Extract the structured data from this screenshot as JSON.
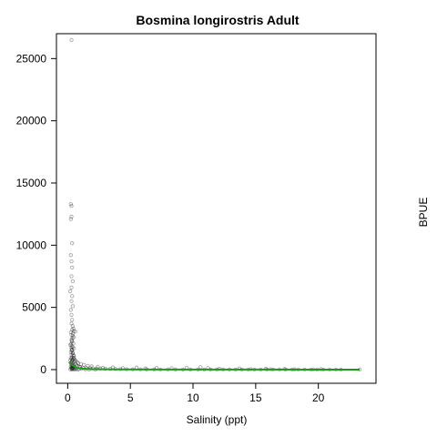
{
  "chart_data": {
    "type": "scatter",
    "title": "Bosmina longirostris Adult",
    "xlabel": "Salinity (ppt)",
    "ylabel": "BPUE",
    "xlim": [
      -0.9,
      24.6
    ],
    "ylim": [
      -1100,
      27000
    ],
    "x_ticks": [
      0,
      5,
      10,
      15,
      20
    ],
    "y_ticks": [
      0,
      5000,
      10000,
      15000,
      20000,
      25000
    ],
    "grid": false,
    "legend": "none",
    "point_color": "#000000",
    "fit_color": "#1a9a1a",
    "series": [
      {
        "kind": "points",
        "points": [
          [
            0.3,
            26500
          ],
          [
            0.25,
            13300
          ],
          [
            0.3,
            13150
          ],
          [
            0.3,
            12300
          ],
          [
            0.25,
            12100
          ],
          [
            0.35,
            10150
          ],
          [
            0.25,
            9200
          ],
          [
            0.3,
            8700
          ],
          [
            0.35,
            8200
          ],
          [
            0.3,
            7500
          ],
          [
            0.4,
            7100
          ],
          [
            0.3,
            6600
          ],
          [
            0.2,
            6300
          ],
          [
            0.35,
            5900
          ],
          [
            0.3,
            5500
          ],
          [
            0.4,
            5100
          ],
          [
            0.25,
            4800
          ],
          [
            0.3,
            4400
          ],
          [
            0.35,
            4000
          ],
          [
            0.3,
            3700
          ],
          [
            0.4,
            3500
          ],
          [
            0.45,
            3300
          ],
          [
            0.5,
            3100
          ],
          [
            0.6,
            3050
          ],
          [
            0.35,
            3200
          ],
          [
            0.25,
            3000
          ],
          [
            0.3,
            2800
          ],
          [
            0.4,
            2700
          ],
          [
            0.5,
            2600
          ],
          [
            0.3,
            2400
          ],
          [
            0.35,
            2250
          ],
          [
            0.45,
            2100
          ],
          [
            0.2,
            2000
          ],
          [
            0.3,
            1900
          ],
          [
            0.4,
            1800
          ],
          [
            0.5,
            1700
          ],
          [
            0.3,
            1600
          ],
          [
            0.35,
            1500
          ],
          [
            0.25,
            1400
          ],
          [
            0.4,
            1300
          ],
          [
            0.3,
            1200
          ],
          [
            0.5,
            1100
          ],
          [
            0.35,
            1000
          ],
          [
            0.25,
            950
          ],
          [
            0.45,
            900
          ],
          [
            0.3,
            850
          ],
          [
            0.4,
            800
          ],
          [
            0.2,
            750
          ],
          [
            0.35,
            700
          ],
          [
            0.55,
            650
          ],
          [
            0.3,
            600
          ],
          [
            0.25,
            550
          ],
          [
            0.4,
            500
          ],
          [
            0.6,
            450
          ],
          [
            0.3,
            420
          ],
          [
            0.35,
            380
          ],
          [
            0.5,
            350
          ],
          [
            0.7,
            320
          ],
          [
            0.3,
            300
          ],
          [
            0.45,
            280
          ],
          [
            0.8,
            260
          ],
          [
            0.25,
            240
          ],
          [
            0.9,
            220
          ],
          [
            1.0,
            200
          ],
          [
            0.35,
            180
          ],
          [
            1.2,
            160
          ],
          [
            0.4,
            150
          ],
          [
            1.5,
            140
          ],
          [
            0.3,
            130
          ],
          [
            0.6,
            120
          ],
          [
            1.8,
            110
          ],
          [
            0.5,
            100
          ],
          [
            2.0,
            100
          ],
          [
            0.3,
            90
          ],
          [
            2.3,
            90
          ],
          [
            0.7,
            80
          ],
          [
            2.6,
            80
          ],
          [
            0.4,
            70
          ],
          [
            3.0,
            70
          ],
          [
            1.1,
            60
          ],
          [
            3.4,
            60
          ],
          [
            0.3,
            50
          ],
          [
            3.8,
            50
          ],
          [
            0.9,
            40
          ],
          [
            4.2,
            40
          ],
          [
            0.5,
            30
          ],
          [
            4.7,
            30
          ],
          [
            1.4,
            25
          ],
          [
            5.2,
            25
          ],
          [
            0.2,
            20
          ],
          [
            5.8,
            20
          ],
          [
            6.3,
            18
          ],
          [
            0.6,
            15
          ],
          [
            6.9,
            15
          ],
          [
            1.7,
            12
          ],
          [
            7.4,
            12
          ],
          [
            0.35,
            10
          ],
          [
            8.0,
            10
          ],
          [
            8.6,
            9
          ],
          [
            0.8,
            8
          ],
          [
            9.2,
            8
          ],
          [
            9.8,
            7
          ],
          [
            2.2,
            6
          ],
          [
            10.4,
            6
          ],
          [
            10.6,
            200
          ],
          [
            10.9,
            6
          ],
          [
            11.4,
            5
          ],
          [
            11.9,
            5
          ],
          [
            12.4,
            4
          ],
          [
            12.9,
            4
          ],
          [
            13.4,
            4
          ],
          [
            13.9,
            3
          ],
          [
            14.4,
            3
          ],
          [
            14.9,
            3
          ],
          [
            15.4,
            3
          ],
          [
            15.9,
            2
          ],
          [
            16.4,
            2
          ],
          [
            16.9,
            2
          ],
          [
            17.4,
            2
          ],
          [
            17.9,
            2
          ],
          [
            18.4,
            1
          ],
          [
            18.9,
            1
          ],
          [
            19.4,
            1
          ],
          [
            19.9,
            1
          ],
          [
            20.4,
            1
          ],
          [
            20.9,
            1
          ],
          [
            21.4,
            1
          ],
          [
            21.8,
            1
          ],
          [
            23.3,
            1
          ],
          [
            12.1,
            60
          ],
          [
            14.6,
            40
          ],
          [
            16.2,
            30
          ],
          [
            18.1,
            25
          ],
          [
            19.6,
            20
          ],
          [
            13.7,
            90
          ],
          [
            11.2,
            120
          ],
          [
            15.8,
            70
          ],
          [
            17.3,
            50
          ],
          [
            20.2,
            35
          ],
          [
            9.5,
            150
          ],
          [
            8.3,
            110
          ],
          [
            7.1,
            130
          ],
          [
            6.2,
            90
          ],
          [
            5.5,
            160
          ],
          [
            4.4,
            120
          ],
          [
            3.6,
            180
          ],
          [
            2.8,
            140
          ],
          [
            2.4,
            220
          ],
          [
            1.9,
            260
          ],
          [
            1.6,
            300
          ],
          [
            1.3,
            380
          ],
          [
            1.05,
            450
          ],
          [
            0.85,
            520
          ],
          [
            0.75,
            600
          ],
          [
            0.65,
            700
          ],
          [
            0.55,
            800
          ],
          [
            0.5,
            950
          ],
          [
            0.45,
            1150
          ],
          [
            0.4,
            1350
          ],
          [
            0.35,
            1600
          ],
          [
            0.3,
            1750
          ],
          [
            0.28,
            2050
          ],
          [
            0.32,
            2350
          ],
          [
            0.38,
            2550
          ],
          [
            0.42,
            2900
          ]
        ]
      },
      {
        "kind": "fit-line",
        "points": [
          [
            0.1,
            600
          ],
          [
            0.3,
            420
          ],
          [
            0.5,
            250
          ],
          [
            0.8,
            130
          ],
          [
            1.2,
            60
          ],
          [
            2.0,
            30
          ],
          [
            4.0,
            15
          ],
          [
            8.0,
            8
          ],
          [
            12.0,
            5
          ],
          [
            16.0,
            3
          ],
          [
            20.0,
            2
          ],
          [
            23.3,
            1
          ]
        ]
      }
    ]
  }
}
